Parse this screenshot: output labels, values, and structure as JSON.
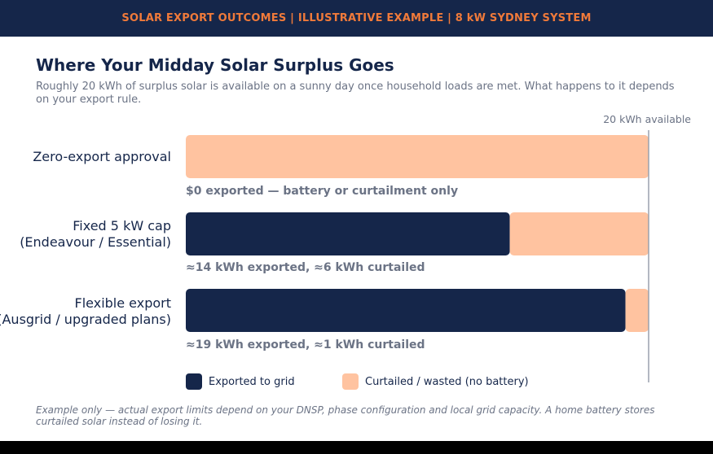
{
  "banner": "SOLAR EXPORT OUTCOMES | ILLUSTRATIVE EXAMPLE | 8 kW SYDNEY SYSTEM",
  "colors": {
    "exported": "#15264a",
    "curtailed": "#ffc3a0",
    "banner_text": "#f07a3a"
  },
  "chart_data": {
    "type": "bar",
    "orientation": "horizontal",
    "stacked": true,
    "title": "Where Your Midday Solar Surplus Goes",
    "subtitle": "Roughly 20 kWh of surplus solar is available on a sunny day once household loads are met. What happens to it depends on your export rule.",
    "xlim": [
      0,
      20
    ],
    "reference_line": {
      "value": 20,
      "label": "20 kWh available"
    },
    "categories": [
      [
        "Zero-export approval"
      ],
      [
        "Fixed 5 kW cap",
        "(Endeavour / Essential)"
      ],
      [
        "Flexible export",
        "(Ausgrid / upgraded plans)"
      ]
    ],
    "series": [
      {
        "name": "Exported to grid",
        "values": [
          0,
          14,
          19
        ]
      },
      {
        "name": "Curtailed / wasted (no battery)",
        "values": [
          20,
          6,
          1
        ]
      }
    ],
    "annotations": [
      "$0 exported — battery or curtailment only",
      "≈14 kWh exported, ≈6 kWh curtailed",
      "≈19 kWh exported, ≈1 kWh curtailed"
    ],
    "legend_position": "bottom"
  },
  "footnote": "Example only — actual export limits depend on your DNSP, phase configuration and local grid capacity. A home battery stores curtailed solar instead of losing it."
}
